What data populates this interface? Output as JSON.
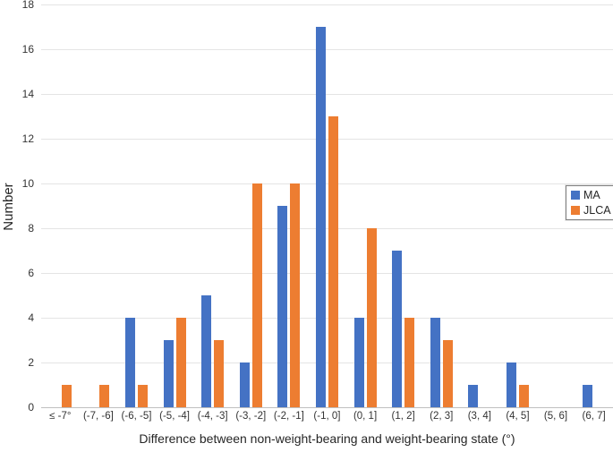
{
  "chart_data": {
    "type": "bar",
    "title": "",
    "xlabel": "Difference between non-weight-bearing and weight-bearing state (°)",
    "ylabel": "Number",
    "ylim": [
      0,
      18
    ],
    "y_ticks": [
      0,
      2,
      4,
      6,
      8,
      10,
      12,
      14,
      16,
      18
    ],
    "grid": "horizontal",
    "legend_position": "right-inside-bordered",
    "categories": [
      "≤ -7°",
      "(-7, -6]",
      "(-6, -5]",
      "(-5, -4]",
      "(-4, -3]",
      "(-3, -2]",
      "(-2, -1]",
      "(-1, 0]",
      "(0, 1]",
      "(1, 2]",
      "(2, 3]",
      "(3, 4]",
      "(4, 5]",
      "(5, 6]",
      "(6, 7]"
    ],
    "series": [
      {
        "name": "MA",
        "color": "#4472C4",
        "values": [
          0,
          0,
          4,
          3,
          5,
          2,
          9,
          17,
          4,
          7,
          4,
          1,
          2,
          0,
          1
        ]
      },
      {
        "name": "JLCA",
        "color": "#ED7D31",
        "values": [
          1,
          1,
          1,
          4,
          3,
          10,
          10,
          13,
          8,
          4,
          3,
          0,
          1,
          0,
          0
        ]
      }
    ]
  }
}
